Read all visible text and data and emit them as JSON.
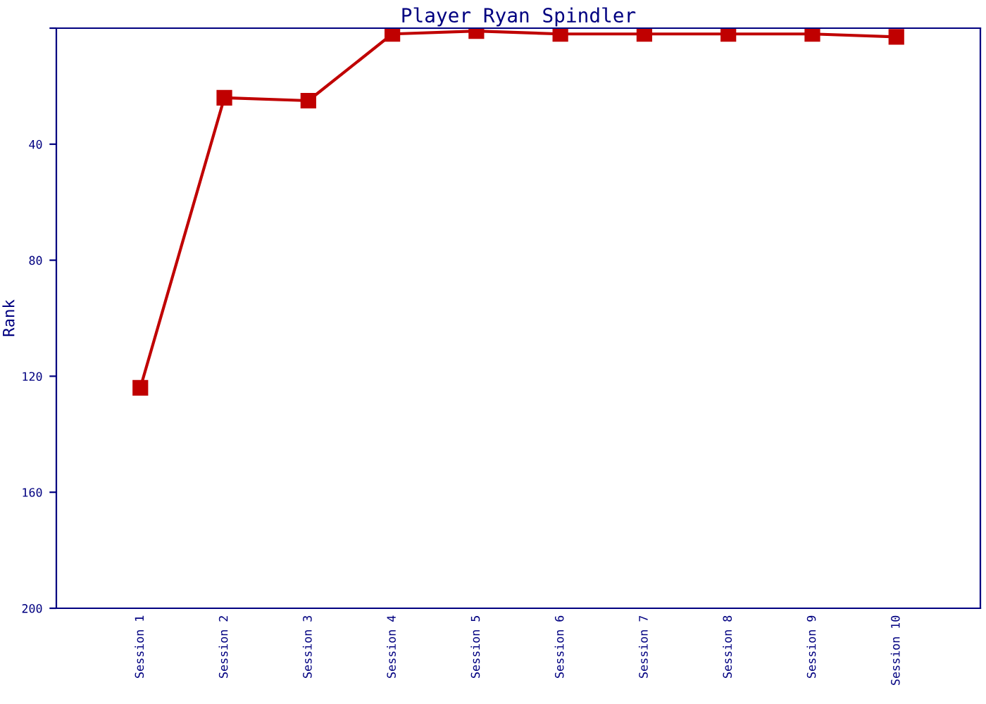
{
  "chart_data": {
    "type": "line",
    "title": "Player Ryan Spindler",
    "ylabel": "Rank",
    "categories": [
      "Session 1",
      "Session 2",
      "Session 3",
      "Session 4",
      "Session 5",
      "Session 6",
      "Session 7",
      "Session 8",
      "Session 9",
      "Session 10"
    ],
    "series": [
      {
        "color": "#c00000",
        "values": [
          124,
          24,
          25,
          2,
          1,
          2,
          2,
          2,
          2,
          3
        ]
      }
    ],
    "ylim": [
      200,
      0
    ],
    "yticks": [
      {
        "value": 0,
        "label": null
      },
      40,
      80,
      120,
      160,
      200
    ],
    "marker": "square",
    "line_style": "solid",
    "grid": false,
    "legend": false
  }
}
